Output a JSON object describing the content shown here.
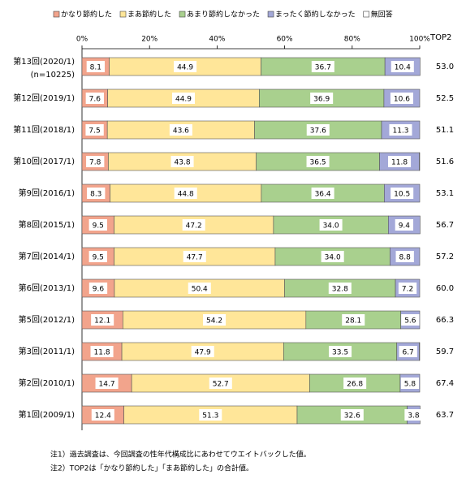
{
  "chart_data": {
    "type": "stacked-bar-horizontal",
    "categories": [
      "第13回(2020/1)",
      "第12回(2019/1)",
      "第11回(2018/1)",
      "第10回(2017/1)",
      "第9回(2016/1)",
      "第8回(2015/1)",
      "第7回(2014/1)",
      "第6回(2013/1)",
      "第5回(2012/1)",
      "第3回(2011/1)",
      "第2回(2010/1)",
      "第1回(2009/1)"
    ],
    "category_note": "(n=10225)",
    "series": [
      {
        "name": "かなり節約した",
        "color": "#f2a48c",
        "values": [
          8.1,
          7.6,
          7.5,
          7.8,
          8.3,
          9.5,
          9.5,
          9.6,
          12.1,
          11.8,
          14.7,
          12.4
        ],
        "value_labels": [
          "8.1",
          "7.6",
          "7.5",
          "7.8",
          "8.3",
          "9.5",
          "9.5",
          "9.6",
          "12.1",
          "11.8",
          "14.7",
          "12.4"
        ]
      },
      {
        "name": "まあ節約した",
        "color": "#ffe699",
        "values": [
          44.9,
          44.9,
          43.6,
          43.8,
          44.8,
          47.2,
          47.7,
          50.4,
          54.2,
          47.9,
          52.7,
          51.3
        ],
        "value_labels": [
          "44.9",
          "44.9",
          "43.6",
          "43.8",
          "44.8",
          "47.2",
          "47.7",
          "50.4",
          "54.2",
          "47.9",
          "52.7",
          "51.3"
        ]
      },
      {
        "name": "あまり節約しなかった",
        "color": "#a9d08e",
        "values": [
          36.7,
          36.9,
          37.6,
          36.5,
          36.4,
          34.0,
          34.0,
          32.8,
          28.1,
          33.5,
          26.8,
          32.6
        ],
        "value_labels": [
          "36.7",
          "36.9",
          "37.6",
          "36.5",
          "36.4",
          "34.0",
          "34.0",
          "32.8",
          "28.1",
          "33.5",
          "26.8",
          "32.6"
        ]
      },
      {
        "name": "まったく節約しなかった",
        "color": "#a3a8d8",
        "values": [
          10.4,
          10.6,
          11.3,
          11.8,
          10.5,
          9.4,
          8.8,
          7.2,
          5.6,
          6.7,
          5.8,
          3.8
        ],
        "value_labels": [
          "10.4",
          "10.6",
          "11.3",
          "11.8",
          "10.5",
          "9.4",
          "8.8",
          "7.2",
          "5.6",
          "6.7",
          "5.8",
          "3.8"
        ]
      },
      {
        "name": "無回答",
        "color": "#ffffff",
        "values": [
          0,
          0,
          0,
          0.1,
          0,
          0,
          0,
          0,
          0,
          0.1,
          0,
          0
        ]
      }
    ],
    "top2": {
      "label": "TOP2",
      "values": [
        53.0,
        52.5,
        51.1,
        51.6,
        53.1,
        56.7,
        57.2,
        60.0,
        66.3,
        59.7,
        67.4,
        63.7
      ],
      "value_labels": [
        "53.0",
        "52.5",
        "51.1",
        "51.6",
        "53.1",
        "56.7",
        "57.2",
        "60.0",
        "66.3",
        "59.7",
        "67.4",
        "63.7"
      ]
    },
    "xlim": [
      0,
      100
    ],
    "xticks": [
      {
        "value": 0,
        "label": "0%"
      },
      {
        "value": 20,
        "label": "20%"
      },
      {
        "value": 40,
        "label": "40%"
      },
      {
        "value": 60,
        "label": "60%"
      },
      {
        "value": 80,
        "label": "80%"
      },
      {
        "value": 100,
        "label": "100%"
      }
    ],
    "notes": [
      "注1）過去調査は、今回調査の性年代構成比にあわせてウエイトバックした値。",
      "注2）TOP2は「かなり節約した」「まあ節約した」の合計値。"
    ]
  }
}
